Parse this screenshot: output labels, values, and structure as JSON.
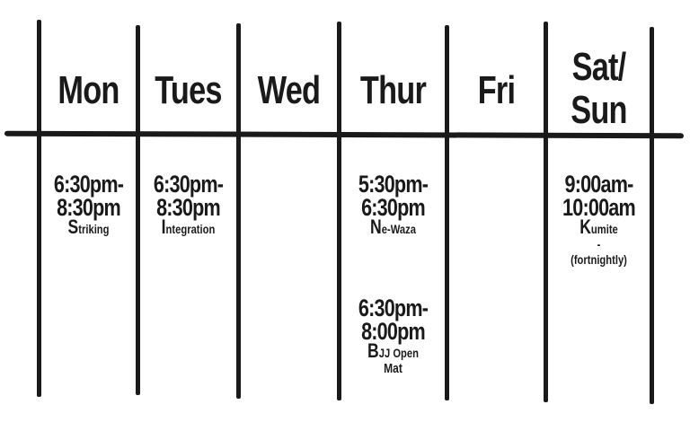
{
  "days": [
    "Mon",
    "Tues",
    "Wed",
    "Thur",
    "Fri",
    "Sat/\nSun"
  ],
  "sat_sun_lines": [
    "Sat/",
    "Sun"
  ],
  "sessions": {
    "mon": {
      "time_start": "6:30pm-",
      "time_end": "8:30pm",
      "class": "Striking"
    },
    "tues": {
      "time_start": "6:30pm-",
      "time_end": "8:30pm",
      "class": "Integration"
    },
    "thur_1": {
      "time_start": "5:30pm-",
      "time_end": "6:30pm",
      "class": "Ne-Waza"
    },
    "thur_2": {
      "time_start": "6:30pm-",
      "time_end": "8:00pm",
      "class": "BJJ Open",
      "class_line2": "Mat"
    },
    "sat_sun": {
      "time_start": "9:00am-",
      "time_end": "10:00am",
      "class": "Kumite",
      "dash": "-",
      "note": "(fortnightly)"
    }
  },
  "colors": {
    "ink": "#1a1a1a",
    "background": "#ffffff"
  }
}
